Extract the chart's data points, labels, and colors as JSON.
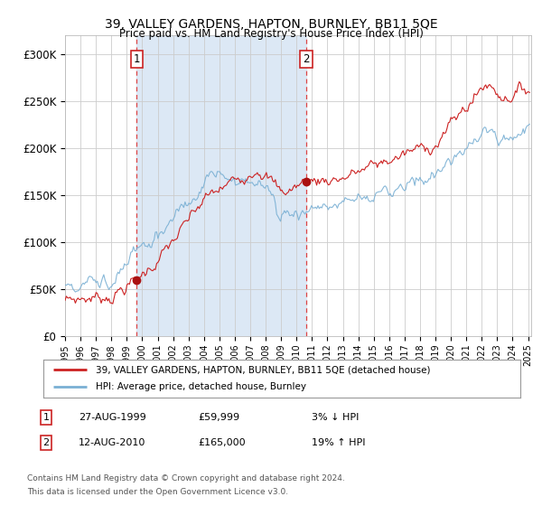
{
  "title": "39, VALLEY GARDENS, HAPTON, BURNLEY, BB11 5QE",
  "subtitle": "Price paid vs. HM Land Registry's House Price Index (HPI)",
  "legend_line1": "39, VALLEY GARDENS, HAPTON, BURNLEY, BB11 5QE (detached house)",
  "legend_line2": "HPI: Average price, detached house, Burnley",
  "sale1_date": "27-AUG-1999",
  "sale1_price": 59999,
  "sale1_year": 1999.65,
  "sale2_date": "12-AUG-2010",
  "sale2_price": 165000,
  "sale2_year": 2010.62,
  "footer": "Contains HM Land Registry data © Crown copyright and database right 2024.\nThis data is licensed under the Open Government Licence v3.0.",
  "hpi_color": "#7ab0d4",
  "price_color": "#cc2222",
  "dot_color": "#aa1111",
  "vline_color": "#dd4444",
  "shade_color": "#dce8f5",
  "ylim": [
    0,
    320000
  ],
  "yticks": [
    0,
    50000,
    100000,
    150000,
    200000,
    250000,
    300000
  ],
  "background_color": "#ffffff",
  "grid_color": "#cccccc",
  "start_year": 1995.0,
  "end_year": 2025.1
}
